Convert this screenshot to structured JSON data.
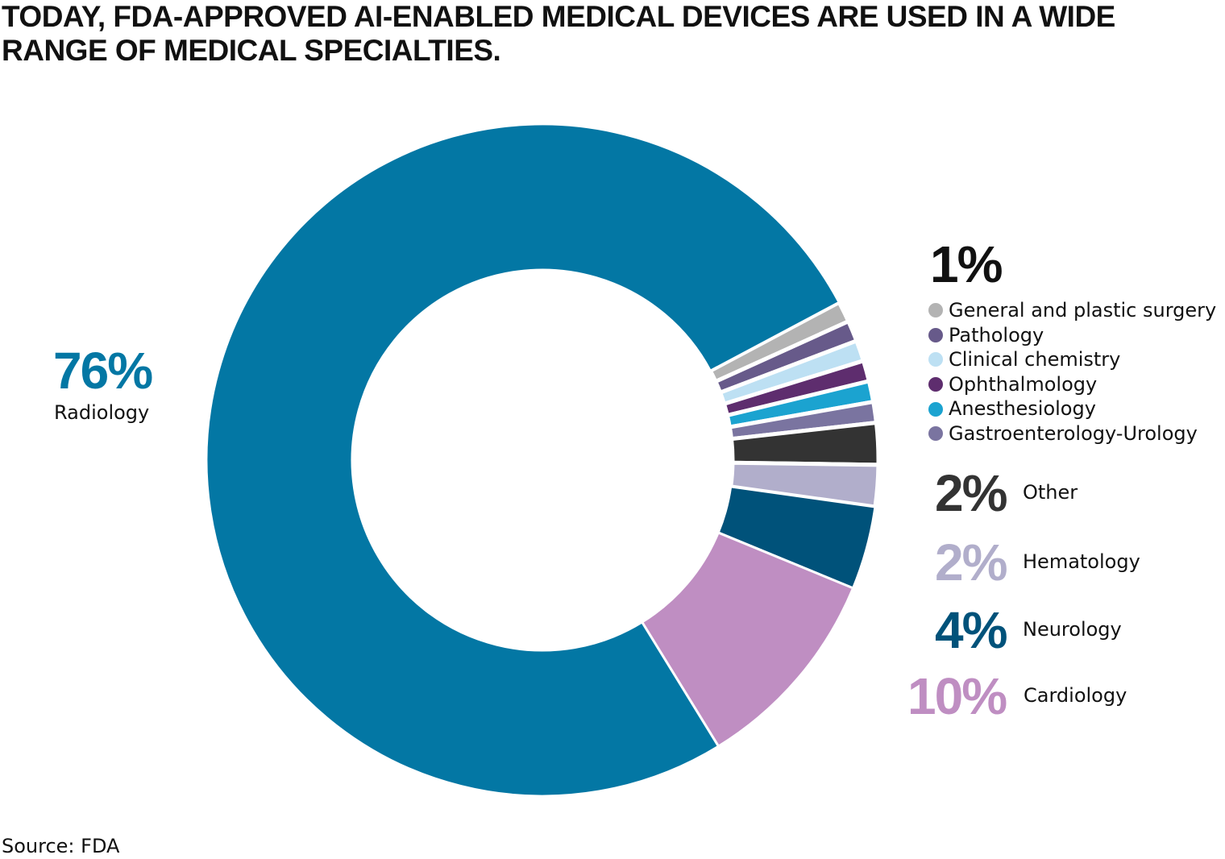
{
  "chart_data": {
    "type": "pie",
    "variant": "donut",
    "title": "TODAY, FDA-APPROVED AI-ENABLED MEDICAL DEVICES ARE USED IN A WIDE RANGE OF MEDICAL SPECIALTIES.",
    "source": "Source: FDA",
    "unit": "%",
    "slices": [
      {
        "name": "General and plastic surgery",
        "value": 1,
        "label": "1%",
        "color": "#b3b3b3"
      },
      {
        "name": "Pathology",
        "value": 1,
        "label": "1%",
        "color": "#675a8a"
      },
      {
        "name": "Clinical chemistry",
        "value": 1,
        "label": "1%",
        "color": "#bde0f3"
      },
      {
        "name": "Ophthalmology",
        "value": 1,
        "label": "1%",
        "color": "#5e2d6e"
      },
      {
        "name": "Anesthesiology",
        "value": 1,
        "label": "1%",
        "color": "#1ba3d0"
      },
      {
        "name": "Gastroenterology-Urology",
        "value": 1,
        "label": "1%",
        "color": "#7a74a0"
      },
      {
        "name": "Other",
        "value": 2,
        "label": "2%",
        "color": "#333333"
      },
      {
        "name": "Hematology",
        "value": 2,
        "label": "2%",
        "color": "#b1aecb"
      },
      {
        "name": "Neurology",
        "value": 4,
        "label": "4%",
        "color": "#00527a"
      },
      {
        "name": "Cardiology",
        "value": 10,
        "label": "10%",
        "color": "#bf8ec2"
      },
      {
        "name": "Radiology",
        "value": 76,
        "label": "76%",
        "color": "#0377a4"
      }
    ],
    "group_label": "1%"
  }
}
